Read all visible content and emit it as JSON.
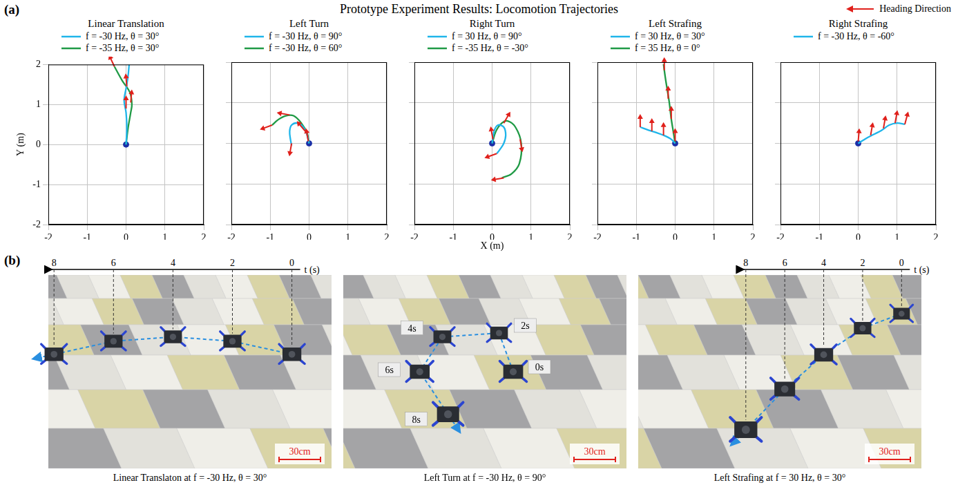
{
  "figure": {
    "panel_labels": [
      "(a)",
      "(b)"
    ],
    "title": "Prototype Experiment Results: Locomotion Trajectories",
    "heading_legend": "Heading Direction",
    "heading_color": "#e0201b",
    "xlabel": "X (m)",
    "ylabel": "Y (m)"
  },
  "chart_data": [
    {
      "type": "line",
      "title": "Linear Translation",
      "xlim": [
        -2,
        2
      ],
      "ylim": [
        -2,
        2
      ],
      "xticks": [
        -2,
        -1,
        0,
        1,
        2
      ],
      "yticks": [
        -2,
        -1,
        0,
        1,
        2
      ],
      "grid": true,
      "legend": "top",
      "tick_labels": true,
      "start": {
        "x": 0,
        "y": 0,
        "color": "#1b2fa8",
        "marker": "circle"
      },
      "series": [
        {
          "name": "f = -30 Hz, θ = 30°",
          "color": "#1fb5ea",
          "x": [
            0,
            0.02,
            0.0,
            -0.05,
            0.0,
            0.05,
            0.08
          ],
          "values": [
            0,
            0.4,
            0.8,
            1.1,
            1.4,
            1.7,
            2.0
          ]
        },
        {
          "name": "f = -35 Hz, θ = 30°",
          "color": "#1f9a45",
          "x": [
            0,
            0.05,
            0.12,
            0.15,
            0.1,
            -0.1,
            -0.3
          ],
          "values": [
            0,
            0.4,
            0.8,
            1.0,
            1.3,
            1.6,
            1.95
          ]
        }
      ],
      "heading_arrows": [
        {
          "x": 0.0,
          "y": 0.9,
          "angle": 90
        },
        {
          "x": 0.12,
          "y": 1.05,
          "angle": 85
        },
        {
          "x": 0.02,
          "y": 1.45,
          "angle": 95
        },
        {
          "x": -0.3,
          "y": 1.95,
          "angle": 115
        }
      ]
    },
    {
      "type": "line",
      "title": "Left Turn",
      "xlim": [
        -2,
        2
      ],
      "ylim": [
        -2,
        2
      ],
      "xticks": [
        -2,
        -1,
        0,
        1,
        2
      ],
      "yticks": [
        -2,
        -1,
        0,
        1,
        2
      ],
      "grid": true,
      "legend": "top",
      "tick_labels": "x",
      "start": {
        "x": 0,
        "y": 0,
        "color": "#1b2fa8",
        "marker": "circle"
      },
      "series": [
        {
          "name": "f = -30 Hz, θ = 90°",
          "color": "#1fb5ea",
          "x": [
            0,
            -0.05,
            -0.15,
            -0.3,
            -0.45,
            -0.5,
            -0.48,
            -0.45
          ],
          "values": [
            0,
            0.2,
            0.4,
            0.5,
            0.45,
            0.3,
            0.1,
            -0.05
          ]
        },
        {
          "name": "f = -30 Hz, θ = 60°",
          "color": "#1f9a45",
          "x": [
            0,
            -0.05,
            -0.2,
            -0.4,
            -0.6,
            -0.8,
            -0.95
          ],
          "values": [
            0,
            0.25,
            0.5,
            0.68,
            0.68,
            0.58,
            0.45
          ]
        }
      ],
      "heading_arrows": [
        {
          "x": -0.02,
          "y": 0.05,
          "angle": 100
        },
        {
          "x": -0.1,
          "y": 0.3,
          "angle": 130
        },
        {
          "x": -0.5,
          "y": 0.7,
          "angle": 170
        },
        {
          "x": -0.95,
          "y": 0.45,
          "angle": 200
        },
        {
          "x": -0.45,
          "y": 0.0,
          "angle": 260
        }
      ]
    },
    {
      "type": "line",
      "title": "Right Turn",
      "xlim": [
        -2,
        2
      ],
      "ylim": [
        -2,
        2
      ],
      "xticks": [
        -2,
        -1,
        0,
        1,
        2
      ],
      "yticks": [
        -2,
        -1,
        0,
        1,
        2
      ],
      "grid": true,
      "legend": "top",
      "tick_labels": "x",
      "start": {
        "x": 0,
        "y": 0,
        "color": "#1b2fa8",
        "marker": "circle"
      },
      "series": [
        {
          "name": "f = 30 Hz, θ = 90°",
          "color": "#1fb5ea",
          "x": [
            0,
            0.05,
            0.15,
            0.3,
            0.35,
            0.3,
            0.2,
            0.12
          ],
          "values": [
            0,
            0.3,
            0.45,
            0.4,
            0.2,
            0.0,
            -0.15,
            -0.25
          ]
        },
        {
          "name": "f = -35 Hz, θ = -30°",
          "color": "#1f9a45",
          "x": [
            0,
            0.1,
            0.25,
            0.4,
            0.6,
            0.75,
            0.7,
            0.5,
            0.25
          ],
          "values": [
            0,
            0.3,
            0.5,
            0.55,
            0.4,
            0.0,
            -0.5,
            -0.75,
            -0.85
          ]
        }
      ],
      "heading_arrows": [
        {
          "x": 0.02,
          "y": 0.1,
          "angle": 100
        },
        {
          "x": 0.3,
          "y": 0.5,
          "angle": 60
        },
        {
          "x": 0.72,
          "y": 0.1,
          "angle": -80
        },
        {
          "x": 0.3,
          "y": -0.85,
          "angle": 190
        },
        {
          "x": 0.12,
          "y": -0.25,
          "angle": 200
        }
      ]
    },
    {
      "type": "line",
      "title": "Left Strafing",
      "xlim": [
        -2,
        2
      ],
      "ylim": [
        -2,
        2
      ],
      "xticks": [
        -2,
        -1,
        0,
        1,
        2
      ],
      "yticks": [
        -2,
        -1,
        0,
        1,
        2
      ],
      "grid": true,
      "legend": "top",
      "tick_labels": "x",
      "start": {
        "x": 0,
        "y": 0,
        "color": "#1b2fa8",
        "marker": "circle"
      },
      "series": [
        {
          "name": "f = 30 Hz, θ = 30°",
          "color": "#1fb5ea",
          "x": [
            0,
            -0.1,
            -0.3,
            -0.5,
            -0.7,
            -0.9
          ],
          "values": [
            0,
            0.1,
            0.2,
            0.27,
            0.33,
            0.4
          ]
        },
        {
          "name": "f = 35 Hz, θ = 0°",
          "color": "#1f9a45",
          "x": [
            0,
            -0.05,
            -0.1,
            -0.15,
            -0.2,
            -0.25,
            -0.3
          ],
          "values": [
            0,
            0.3,
            0.6,
            1.0,
            1.3,
            1.6,
            1.95
          ]
        }
      ],
      "heading_arrows": [
        {
          "x": -0.9,
          "y": 0.4,
          "angle": 90
        },
        {
          "x": -0.6,
          "y": 0.3,
          "angle": 90
        },
        {
          "x": -0.3,
          "y": 0.2,
          "angle": 90
        },
        {
          "x": 0.0,
          "y": 0.05,
          "angle": 90
        },
        {
          "x": -0.1,
          "y": 0.6,
          "angle": 90
        },
        {
          "x": -0.18,
          "y": 1.1,
          "angle": 90
        },
        {
          "x": -0.28,
          "y": 1.8,
          "angle": 90
        }
      ]
    },
    {
      "type": "line",
      "title": "Right Strafing",
      "xlim": [
        -2,
        2
      ],
      "ylim": [
        -2,
        2
      ],
      "xticks": [
        -2,
        -1,
        0,
        1,
        2
      ],
      "yticks": [
        -2,
        -1,
        0,
        1,
        2
      ],
      "grid": true,
      "legend": "top",
      "tick_labels": "x",
      "start": {
        "x": 0,
        "y": 0,
        "color": "#1b2fa8",
        "marker": "circle"
      },
      "series": [
        {
          "name": "f = -30 Hz, θ = -60°",
          "color": "#1fb5ea",
          "x": [
            0,
            0.2,
            0.4,
            0.6,
            0.8,
            1.0,
            1.2
          ],
          "values": [
            0,
            0.12,
            0.22,
            0.32,
            0.45,
            0.5,
            0.47
          ]
        }
      ],
      "heading_arrows": [
        {
          "x": 0.0,
          "y": 0.05,
          "angle": 85
        },
        {
          "x": 0.32,
          "y": 0.2,
          "angle": 80
        },
        {
          "x": 0.65,
          "y": 0.37,
          "angle": 80
        },
        {
          "x": 0.95,
          "y": 0.5,
          "angle": 80
        },
        {
          "x": 1.2,
          "y": 0.47,
          "angle": 75
        }
      ]
    }
  ],
  "photos": [
    {
      "caption": "Linear Translaton at f = -30 Hz, θ = 30°",
      "time_axis": {
        "label": "t (s)",
        "ticks": [
          8,
          6,
          4,
          2,
          0
        ]
      },
      "scale_bar": "30cm"
    },
    {
      "caption": "Left Turn at f = -30 Hz, θ = 90°",
      "time_labels": [
        "0s",
        "2s",
        "4s",
        "6s",
        "8s"
      ],
      "scale_bar": "30cm"
    },
    {
      "caption": "Left Strafing at f = 30 Hz, θ = 30°",
      "time_axis": {
        "label": "t (s)",
        "ticks": [
          8,
          6,
          4,
          2,
          0
        ]
      },
      "scale_bar": "30cm"
    }
  ]
}
